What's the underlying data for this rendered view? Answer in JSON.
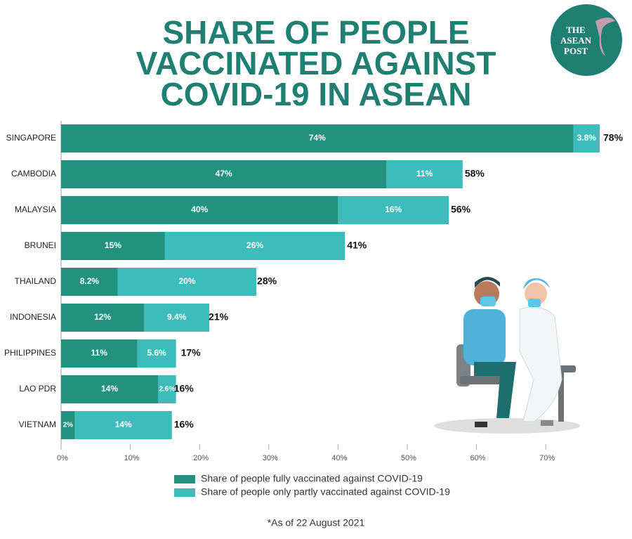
{
  "chart_data": {
    "type": "stacked-bar-horizontal",
    "title": [
      "SHARE OF PEOPLE",
      "VACCINATED AGAINST",
      "COVID-19 IN ASEAN"
    ],
    "categories": [
      "SINGAPORE",
      "CAMBODIA",
      "MALAYSIA",
      "BRUNEI",
      "THAILAND",
      "INDONESIA",
      "PHILIPPINES",
      "LAO PDR",
      "VIETNAM"
    ],
    "series": [
      {
        "name": "Share of people fully vaccinated against COVID-19",
        "color": "#23917f",
        "values": [
          74,
          47,
          40,
          15,
          8.2,
          12,
          11,
          14,
          2
        ],
        "value_labels": [
          "74%",
          "47%",
          "40%",
          "15%",
          "8.2%",
          "12%",
          "11%",
          "14%",
          "2%"
        ]
      },
      {
        "name": "Share of people only partly vaccinated against COVID-19",
        "color": "#3dbcbb",
        "values": [
          3.8,
          11,
          16,
          26,
          20,
          9.4,
          5.6,
          2.6,
          14
        ],
        "value_labels": [
          "3.8%",
          "11%",
          "16%",
          "26%",
          "20%",
          "9.4%",
          "5.6%",
          "2.6%",
          "14%"
        ]
      }
    ],
    "totals": [
      78,
      58,
      56,
      41,
      28,
      21,
      17,
      16,
      16
    ],
    "total_labels": [
      "78%",
      "58%",
      "56%",
      "41%",
      "28%",
      "21%",
      "17%",
      "16%",
      "16%"
    ],
    "xlim": [
      0,
      78
    ],
    "xticks": [
      {
        "value": 0,
        "label": "0%"
      },
      {
        "value": 10,
        "label": "10%"
      },
      {
        "value": 20,
        "label": "20%"
      },
      {
        "value": 30,
        "label": "30%"
      },
      {
        "value": 40,
        "label": "40%"
      },
      {
        "value": 50,
        "label": "50%"
      },
      {
        "value": 60,
        "label": "60%"
      },
      {
        "value": 70,
        "label": "70%"
      }
    ],
    "footnote": "*As of 22 August 2021"
  },
  "logo_text": [
    "THE",
    "ASEAN",
    "POST"
  ]
}
